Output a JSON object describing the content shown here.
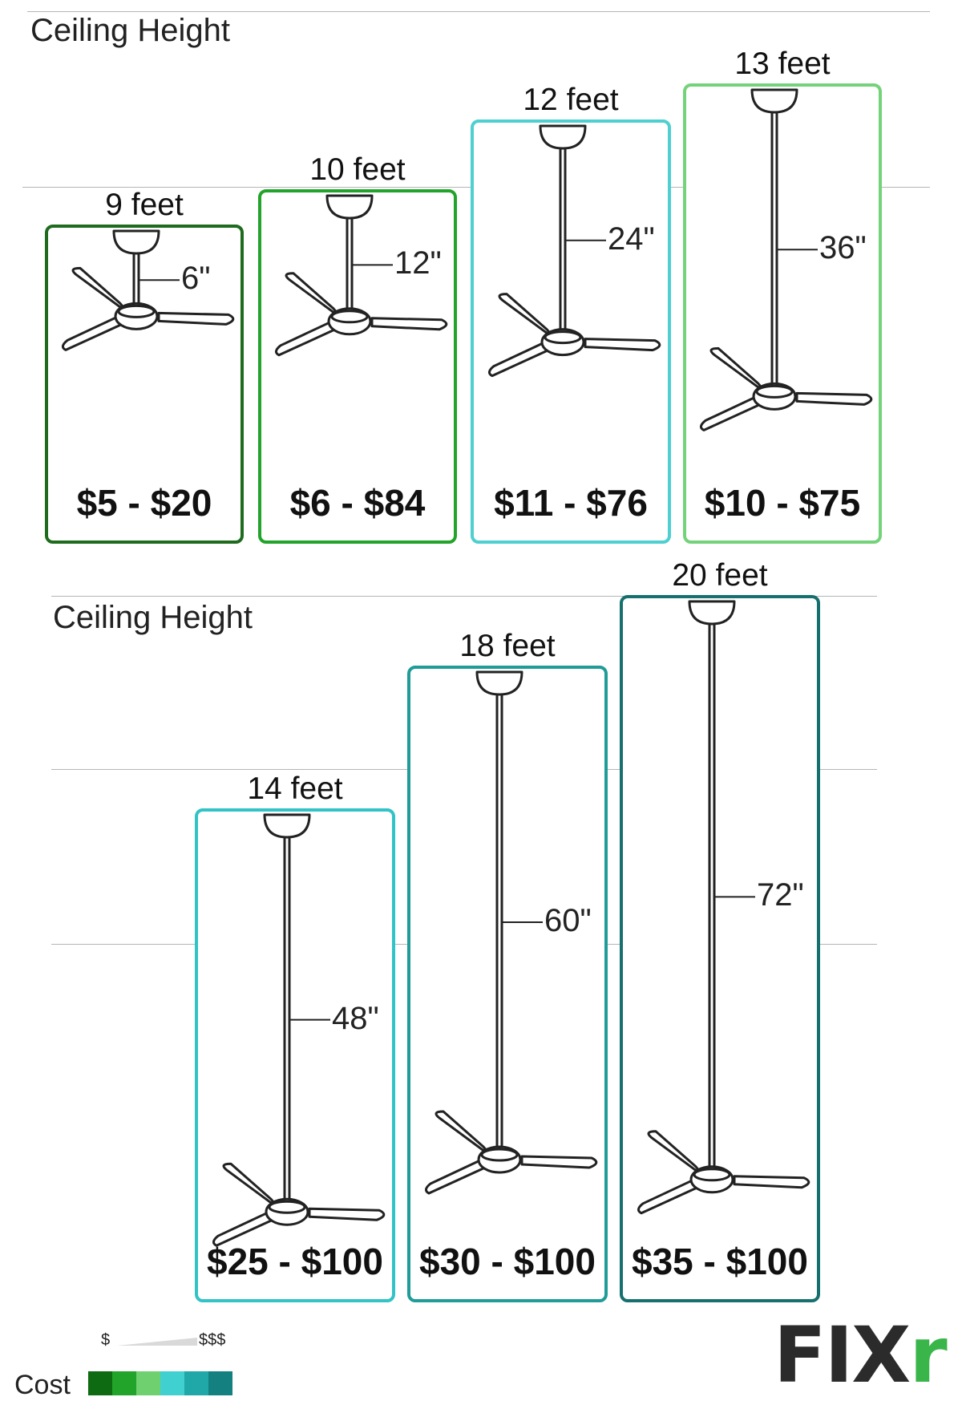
{
  "sections": [
    {
      "title": "Ceiling Height",
      "cards": [
        {
          "height_label": "9 feet",
          "downrod_label": "6\"",
          "downrod_inches": 6,
          "price": "$5 - $20",
          "color": "#1e6b1e"
        },
        {
          "height_label": "10 feet",
          "downrod_label": "12\"",
          "downrod_inches": 12,
          "price": "$6 - $84",
          "color": "#22a32a"
        },
        {
          "height_label": "12 feet",
          "downrod_label": "24\"",
          "downrod_inches": 24,
          "price": "$11 - $76",
          "color": "#4ecfd0"
        },
        {
          "height_label": "13 feet",
          "downrod_label": "36\"",
          "downrod_inches": 36,
          "price": "$10 - $75",
          "color": "#74d37a"
        }
      ]
    },
    {
      "title": "Ceiling Height",
      "cards": [
        {
          "height_label": "14 feet",
          "downrod_label": "48\"",
          "downrod_inches": 48,
          "price": "$25 - $100",
          "color": "#32c3c6"
        },
        {
          "height_label": "18 feet",
          "downrod_label": "60\"",
          "downrod_inches": 60,
          "price": "$30 - $100",
          "color": "#1f9c98"
        },
        {
          "height_label": "20 feet",
          "downrod_label": "72\"",
          "downrod_inches": 72,
          "price": "$35 - $100",
          "color": "#16706e"
        }
      ]
    }
  ],
  "legend": {
    "title": "Cost",
    "low_label": "$",
    "high_label": "$$$",
    "colors": [
      "#0e6b12",
      "#22a32a",
      "#6fd06f",
      "#40d0d0",
      "#20a8a8",
      "#148080"
    ]
  },
  "logo": {
    "text": "FIX",
    "accent_text": "r",
    "accent_color": "#39b54a"
  }
}
